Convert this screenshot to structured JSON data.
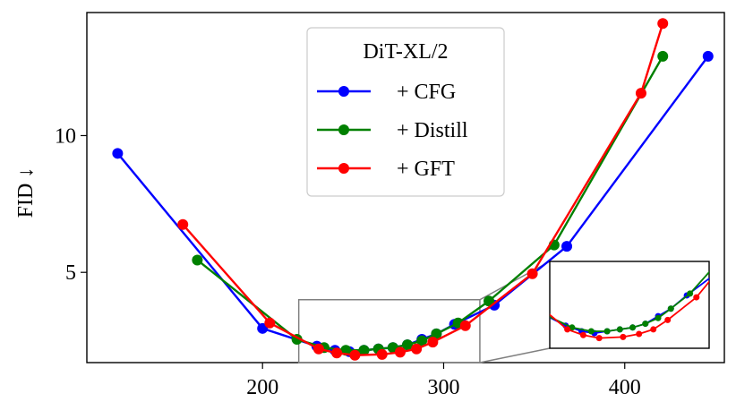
{
  "chart_data": {
    "type": "line",
    "ylabel": "FID ↓",
    "xlabel": "",
    "xlim": [
      103,
      455
    ],
    "ylim": [
      1.7,
      14.5
    ],
    "xticks": [
      200,
      300,
      400
    ],
    "yticks": [
      5,
      10
    ],
    "grid": false,
    "legend": {
      "title": "DiT-XL/2",
      "placement": "top-center",
      "entries": [
        "+ CFG",
        "+ Distill",
        "+ GFT"
      ]
    },
    "series": [
      {
        "name": "+ CFG",
        "color": "#0000ff",
        "x": [
          120,
          200,
          230,
          240,
          248,
          256,
          264,
          272,
          280,
          288,
          296,
          306,
          328,
          368,
          446
        ],
        "y": [
          9.35,
          2.95,
          2.3,
          2.15,
          2.1,
          2.15,
          2.2,
          2.25,
          2.35,
          2.55,
          2.75,
          3.1,
          3.8,
          5.95,
          12.9
        ]
      },
      {
        "name": "+ Distill",
        "color": "#008000",
        "x": [
          164,
          219,
          234,
          246,
          256,
          264,
          272,
          280,
          288,
          296,
          308,
          325,
          361,
          421
        ],
        "y": [
          5.45,
          2.55,
          2.25,
          2.15,
          2.15,
          2.2,
          2.25,
          2.35,
          2.5,
          2.75,
          3.15,
          3.95,
          6.0,
          12.9
        ]
      },
      {
        "name": "+ GFT",
        "color": "#ff0000",
        "x": [
          156,
          204,
          231,
          241,
          251,
          266,
          276,
          285,
          294,
          312,
          349,
          409,
          421
        ],
        "y": [
          6.75,
          3.15,
          2.2,
          2.05,
          1.97,
          2.0,
          2.08,
          2.2,
          2.45,
          3.05,
          4.95,
          11.55,
          14.1
        ]
      }
    ],
    "inset": {
      "type": "zoom",
      "xlim": [
        220,
        320
      ],
      "ylim": [
        1.7,
        4.0
      ],
      "placement": "lower-right"
    }
  }
}
